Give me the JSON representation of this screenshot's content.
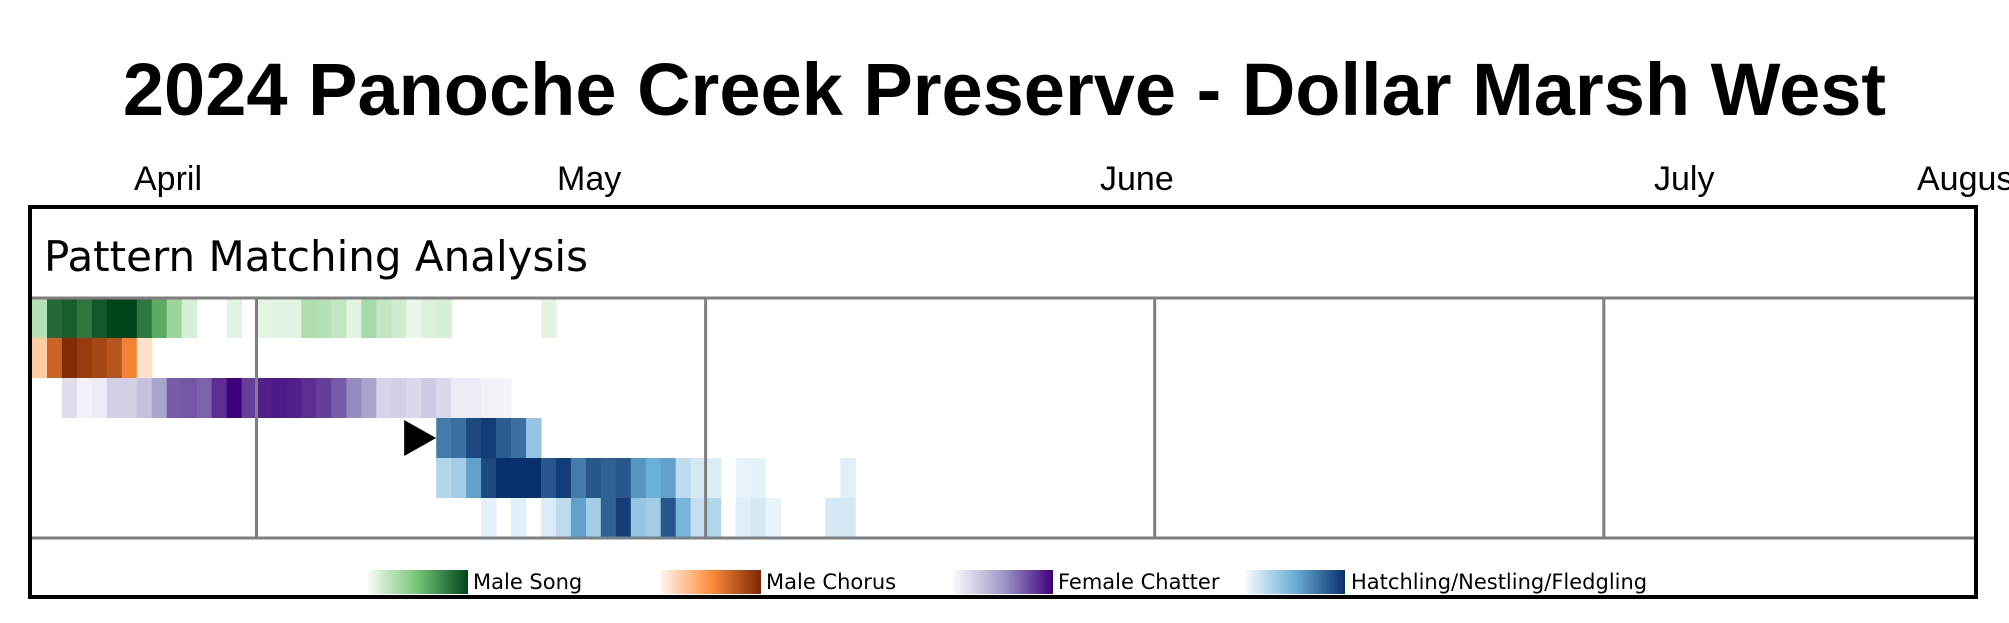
{
  "title": "2024 Panoche Creek Preserve - Dollar Marsh West",
  "subtitle": "Pattern Matching Analysis",
  "months": [
    "April",
    "May",
    "June",
    "July",
    "August"
  ],
  "legend": [
    {
      "label": "Male Song",
      "colors": [
        "#f7fcf5",
        "#74c476",
        "#00441b"
      ]
    },
    {
      "label": "Male Chorus",
      "colors": [
        "#fff5eb",
        "#fd8d3c",
        "#7f2704"
      ]
    },
    {
      "label": "Female Chatter",
      "colors": [
        "#fcfbfd",
        "#9e9ac8",
        "#3f007d"
      ]
    },
    {
      "label": "Hatchling/Nestling/Fledgling",
      "colors": [
        "#f7fbff",
        "#6baed6",
        "#08306b"
      ]
    }
  ],
  "chart_data": {
    "type": "heatmap",
    "title": "2024 Panoche Creek Preserve - Dollar Marsh West",
    "subtitle": "Pattern Matching Analysis",
    "x_axis": "date",
    "xlim": [
      "2024-03-24",
      "2024-08-01"
    ],
    "x_tick_labels": [
      "April",
      "May",
      "June",
      "July",
      "August"
    ],
    "week_dividers": [
      "2024-04-08",
      "2024-05-08",
      "2024-06-07",
      "2024-07-07"
    ],
    "cell_days": 1,
    "intensity_scale": [
      0,
      1
    ],
    "marker": {
      "type": "triangle-right",
      "row": "Hatchling/Nestling/Fledgling",
      "date": "2024-04-20"
    },
    "rows": [
      {
        "name": "Male Song",
        "colormap": "Greens",
        "cells": [
          [
            "2024-03-24",
            0.25
          ],
          [
            "2024-03-25",
            0.85
          ],
          [
            "2024-03-26",
            0.9
          ],
          [
            "2024-03-27",
            0.8
          ],
          [
            "2024-03-28",
            0.92
          ],
          [
            "2024-03-29",
            1.0
          ],
          [
            "2024-03-30",
            1.0
          ],
          [
            "2024-03-31",
            0.8
          ],
          [
            "2024-04-01",
            0.6
          ],
          [
            "2024-04-02",
            0.35
          ],
          [
            "2024-04-03",
            0.12
          ],
          [
            "2024-04-06",
            0.08
          ],
          [
            "2024-04-08",
            0.07
          ],
          [
            "2024-04-09",
            0.08
          ],
          [
            "2024-04-10",
            0.08
          ],
          [
            "2024-04-11",
            0.28
          ],
          [
            "2024-04-12",
            0.25
          ],
          [
            "2024-04-13",
            0.2
          ],
          [
            "2024-04-14",
            0.08
          ],
          [
            "2024-04-15",
            0.3
          ],
          [
            "2024-04-16",
            0.2
          ],
          [
            "2024-04-17",
            0.15
          ],
          [
            "2024-04-18",
            0.05
          ],
          [
            "2024-04-19",
            0.1
          ],
          [
            "2024-04-20",
            0.12
          ],
          [
            "2024-04-27",
            0.08
          ]
        ]
      },
      {
        "name": "Male Chorus",
        "colormap": "Oranges",
        "cells": [
          [
            "2024-03-24",
            0.2
          ],
          [
            "2024-03-25",
            0.7
          ],
          [
            "2024-03-26",
            0.98
          ],
          [
            "2024-03-27",
            0.9
          ],
          [
            "2024-03-28",
            0.85
          ],
          [
            "2024-03-29",
            0.78
          ],
          [
            "2024-03-30",
            0.55
          ],
          [
            "2024-03-31",
            0.1
          ]
        ]
      },
      {
        "name": "Female Chatter",
        "colormap": "Purples",
        "cells": [
          [
            "2024-03-26",
            0.15
          ],
          [
            "2024-03-27",
            0.05
          ],
          [
            "2024-03-28",
            0.08
          ],
          [
            "2024-03-29",
            0.22
          ],
          [
            "2024-03-30",
            0.22
          ],
          [
            "2024-03-31",
            0.3
          ],
          [
            "2024-04-01",
            0.45
          ],
          [
            "2024-04-02",
            0.7
          ],
          [
            "2024-04-03",
            0.72
          ],
          [
            "2024-04-04",
            0.68
          ],
          [
            "2024-04-05",
            0.85
          ],
          [
            "2024-04-06",
            1.0
          ],
          [
            "2024-04-07",
            0.8
          ],
          [
            "2024-04-08",
            0.9
          ],
          [
            "2024-04-09",
            0.92
          ],
          [
            "2024-04-10",
            0.9
          ],
          [
            "2024-04-11",
            0.85
          ],
          [
            "2024-04-12",
            0.8
          ],
          [
            "2024-04-13",
            0.7
          ],
          [
            "2024-04-14",
            0.55
          ],
          [
            "2024-04-15",
            0.45
          ],
          [
            "2024-04-16",
            0.2
          ],
          [
            "2024-04-17",
            0.22
          ],
          [
            "2024-04-18",
            0.18
          ],
          [
            "2024-04-19",
            0.25
          ],
          [
            "2024-04-20",
            0.18
          ],
          [
            "2024-04-21",
            0.08
          ],
          [
            "2024-04-22",
            0.08
          ],
          [
            "2024-04-23",
            0.05
          ],
          [
            "2024-04-24",
            0.04
          ]
        ]
      },
      {
        "name": "Hatchling/Nestling/Fledgling",
        "colormap": "Blues",
        "cells": [
          [
            "2024-04-20",
            0.7
          ],
          [
            "2024-04-21",
            0.75
          ],
          [
            "2024-04-22",
            0.9
          ],
          [
            "2024-04-23",
            0.95
          ],
          [
            "2024-04-24",
            0.82
          ],
          [
            "2024-04-25",
            0.75
          ],
          [
            "2024-04-26",
            0.35
          ]
        ]
      },
      {
        "name": "Hatchling/Nestling/Fledgling",
        "colormap": "Blues",
        "cells": [
          [
            "2024-04-20",
            0.25
          ],
          [
            "2024-04-21",
            0.3
          ],
          [
            "2024-04-22",
            0.55
          ],
          [
            "2024-04-23",
            0.9
          ],
          [
            "2024-04-24",
            1.0
          ],
          [
            "2024-04-25",
            1.0
          ],
          [
            "2024-04-26",
            1.0
          ],
          [
            "2024-04-27",
            0.85
          ],
          [
            "2024-04-28",
            0.95
          ],
          [
            "2024-04-29",
            0.7
          ],
          [
            "2024-04-30",
            0.85
          ],
          [
            "2024-05-01",
            0.8
          ],
          [
            "2024-05-02",
            0.85
          ],
          [
            "2024-05-03",
            0.6
          ],
          [
            "2024-05-04",
            0.5
          ],
          [
            "2024-05-05",
            0.55
          ],
          [
            "2024-05-06",
            0.2
          ],
          [
            "2024-05-07",
            0.12
          ],
          [
            "2024-05-08",
            0.1
          ],
          [
            "2024-05-10",
            0.05
          ],
          [
            "2024-05-11",
            0.06
          ],
          [
            "2024-05-17",
            0.08
          ]
        ]
      },
      {
        "name": "Hatchling/Nestling/Fledgling",
        "colormap": "Blues",
        "cells": [
          [
            "2024-04-23",
            0.06
          ],
          [
            "2024-04-25",
            0.08
          ],
          [
            "2024-04-27",
            0.1
          ],
          [
            "2024-04-28",
            0.2
          ],
          [
            "2024-04-29",
            0.55
          ],
          [
            "2024-04-30",
            0.3
          ],
          [
            "2024-05-01",
            0.8
          ],
          [
            "2024-05-02",
            0.95
          ],
          [
            "2024-05-03",
            0.35
          ],
          [
            "2024-05-04",
            0.3
          ],
          [
            "2024-05-05",
            0.85
          ],
          [
            "2024-05-06",
            0.45
          ],
          [
            "2024-05-07",
            0.18
          ],
          [
            "2024-05-08",
            0.25
          ],
          [
            "2024-05-10",
            0.08
          ],
          [
            "2024-05-11",
            0.12
          ],
          [
            "2024-05-12",
            0.05
          ],
          [
            "2024-05-16",
            0.12
          ],
          [
            "2024-05-17",
            0.12
          ]
        ]
      }
    ]
  }
}
